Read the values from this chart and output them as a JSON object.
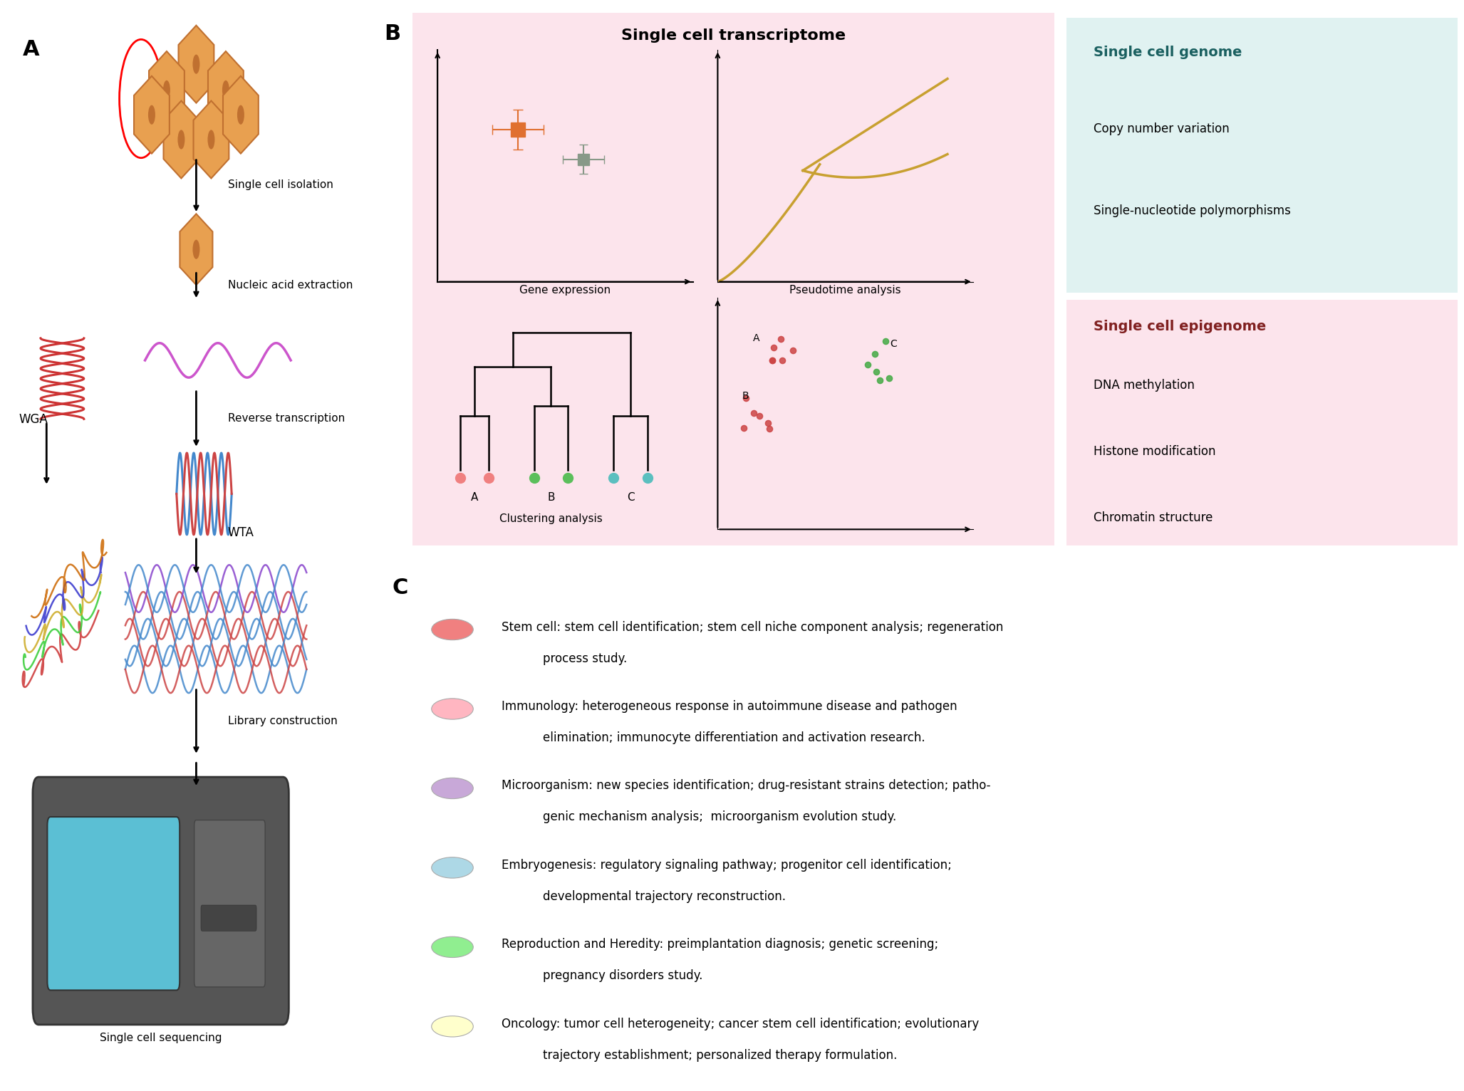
{
  "panel_A_label": "A",
  "panel_B_label": "B",
  "panel_C_label": "C",
  "panel_A_steps": [
    "Single cell isolation",
    "Nucleic acid extraction",
    "Reverse transcription",
    "Library construction",
    "Single cell sequencing"
  ],
  "panel_B_title": "Single cell transcriptome",
  "panel_B_bg": "#fce4ec",
  "genome_box_bg": "#e0f2f1",
  "genome_title": "Single cell genome",
  "genome_items": [
    "Copy number variation",
    "Single-nucleotide polymorphisms"
  ],
  "epigenome_box_bg": "#fce4ec",
  "epigenome_title": "Single cell epigenome",
  "epigenome_items": [
    "DNA methylation",
    "Histone modification",
    "Chromatin structure"
  ],
  "panel_C_entries": [
    {
      "color": "#f08080",
      "line1": "Stem cell: stem cell identification; stem cell niche component analysis; regeneration",
      "line2": "process study."
    },
    {
      "color": "#ffb6c1",
      "line1": "Immunology: heterogeneous response in autoimmune disease and pathogen",
      "line2": "elimination; immunocyte differentiation and activation research."
    },
    {
      "color": "#c8a8d8",
      "line1": "Microorganism: new species identification; drug-resistant strains detection; patho-",
      "line2": "genic mechanism analysis;  microorganism evolution study."
    },
    {
      "color": "#add8e6",
      "line1": "Embryogenesis: regulatory signaling pathway; progenitor cell identification;",
      "line2": "developmental trajectory reconstruction."
    },
    {
      "color": "#90ee90",
      "line1": "Reproduction and Heredity: preimplantation diagnosis; genetic screening;",
      "line2": "pregnancy disorders study."
    },
    {
      "color": "#ffffcc",
      "line1": "Oncology: tumor cell heterogeneity; cancer stem cell identification; evolutionary",
      "line2": "trajectory establishment; personalized therapy formulation."
    }
  ],
  "bg_color": "#ffffff",
  "cell_orange": "#E8A050",
  "dark_orange": "#c07030"
}
